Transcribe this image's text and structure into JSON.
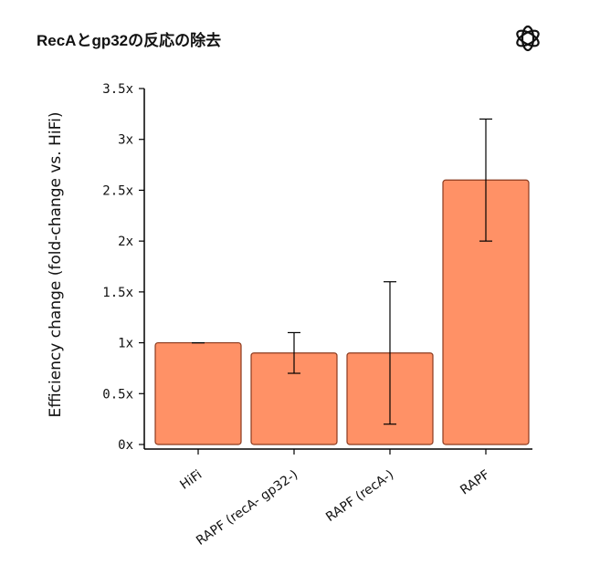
{
  "header": {
    "title": "RecAとgp32の反応の除去",
    "logo_icon": "openai-logo-icon"
  },
  "chart_data": {
    "type": "bar",
    "title": "RecAとgp32の反応の除去",
    "xlabel": "",
    "ylabel": "Efficiency change (fold-change vs. HiFi)",
    "categories": [
      "HiFi",
      "RAPF (recA- gp32-)",
      "RAPF (recA-)",
      "RAPF"
    ],
    "values": [
      1.0,
      0.9,
      0.9,
      2.6
    ],
    "error_low": [
      1.0,
      0.7,
      0.2,
      2.0
    ],
    "error_high": [
      1.0,
      1.1,
      1.6,
      3.2
    ],
    "ylim": [
      0,
      3.5
    ],
    "yticks": [
      0,
      0.5,
      1,
      1.5,
      2,
      2.5,
      3,
      3.5
    ],
    "ytick_labels": [
      "0x",
      "0.5x",
      "1x",
      "1.5x",
      "2x",
      "2.5x",
      "3x",
      "3.5x"
    ],
    "bar_color": "#FF9166",
    "bar_edge_color": "#8B3A1E",
    "grid": false
  }
}
